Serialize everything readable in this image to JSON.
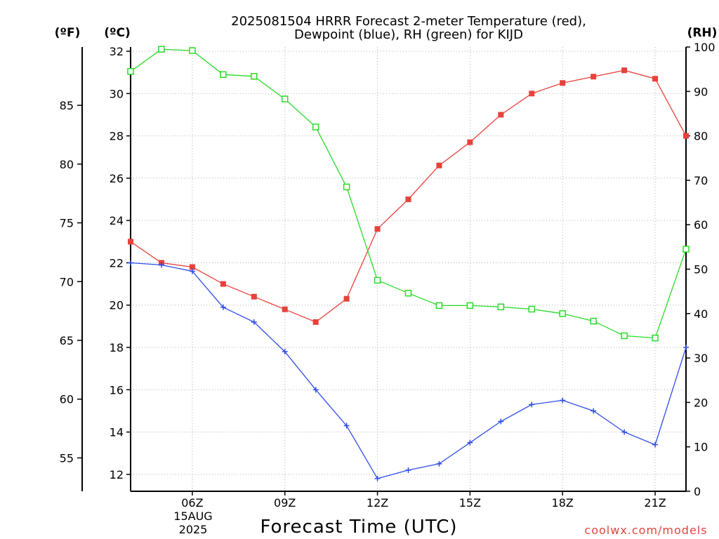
{
  "title_line1": "2025081504 HRRR Forecast 2-meter Temperature (red),",
  "title_line2": "Dewpoint (blue), RH (green) for KIJD",
  "unit_f": "(ºF)",
  "unit_c": "(ºC)",
  "unit_rh": "(RH)",
  "date_line1": "15AUG",
  "date_line2": "2025",
  "credit": "coolwx.com/models",
  "chart_data": {
    "type": "line",
    "xlabel": "Forecast Time (UTC)",
    "x": [
      "04Z",
      "05Z",
      "06Z",
      "07Z",
      "08Z",
      "09Z",
      "10Z",
      "11Z",
      "12Z",
      "13Z",
      "14Z",
      "15Z",
      "16Z",
      "17Z",
      "18Z",
      "19Z",
      "20Z",
      "21Z",
      "22Z"
    ],
    "x_tick_labels": [
      {
        "x": "06Z",
        "label": "06Z"
      },
      {
        "x": "09Z",
        "label": "09Z"
      },
      {
        "x": "12Z",
        "label": "12Z"
      },
      {
        "x": "15Z",
        "label": "15Z"
      },
      {
        "x": "18Z",
        "label": "18Z"
      },
      {
        "x": "21Z",
        "label": "21Z"
      }
    ],
    "x_range": [
      "04Z",
      "22Z"
    ],
    "y_left_c": {
      "ylim": [
        11.2,
        32.2
      ],
      "ticks": [
        12,
        14,
        16,
        18,
        20,
        22,
        24,
        26,
        28,
        30,
        32
      ]
    },
    "y_far_left_f": {
      "ylim": [
        52.16,
        89.96
      ],
      "ticks": [
        55,
        60,
        65,
        70,
        75,
        80,
        85
      ]
    },
    "y_right_rh": {
      "ylim": [
        0,
        100
      ],
      "ticks": [
        0,
        10,
        20,
        30,
        40,
        50,
        60,
        70,
        80,
        90,
        100
      ]
    },
    "grid": true,
    "series": [
      {
        "name": "Temperature",
        "axis": "c",
        "color": "#e8413b",
        "marker": "filled-square",
        "values": [
          23.0,
          22.0,
          21.8,
          21.0,
          20.4,
          19.8,
          19.2,
          20.3,
          23.6,
          25.0,
          26.6,
          27.7,
          29.0,
          30.0,
          30.5,
          30.8,
          31.1,
          30.7,
          28.0
        ]
      },
      {
        "name": "Dewpoint",
        "axis": "c",
        "color": "#2f4de8",
        "marker": "plus",
        "values": [
          22.0,
          21.9,
          21.6,
          19.9,
          19.2,
          17.8,
          16.0,
          14.3,
          11.8,
          12.2,
          12.5,
          13.5,
          14.5,
          15.3,
          15.5,
          15.0,
          14.0,
          13.4,
          18.0
        ]
      },
      {
        "name": "RH",
        "axis": "rh",
        "color": "#28dc28",
        "marker": "open-square",
        "values": [
          94.5,
          99.5,
          99.2,
          93.8,
          93.4,
          88.3,
          82.0,
          68.5,
          47.5,
          44.6,
          41.8,
          41.8,
          41.5,
          41.0,
          40.0,
          38.3,
          35.0,
          34.5,
          54.5
        ]
      }
    ]
  }
}
